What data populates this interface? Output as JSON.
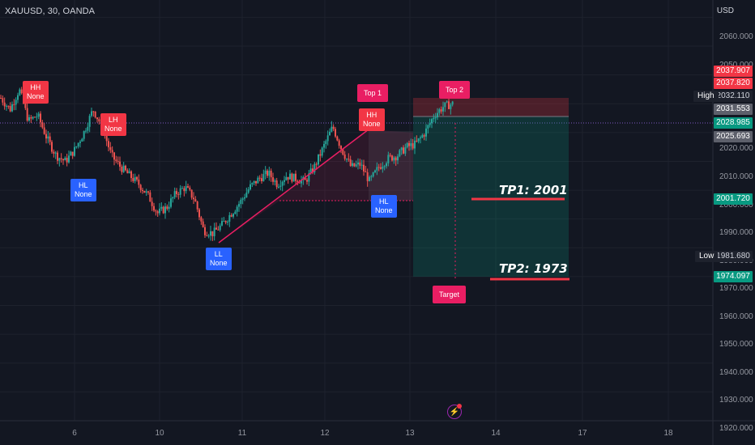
{
  "header": {
    "symbol": "XAUUSD, 30, OANDA",
    "currency": "USD"
  },
  "colors": {
    "background": "#131722",
    "up": "#26a69a",
    "down": "#ef5350",
    "accent_pink": "#e91e63",
    "label_red": "#f23645",
    "label_blue": "#2962ff"
  },
  "price_axis": {
    "ticks": [
      "2060.000",
      "2050.000",
      "2020.000",
      "2010.000",
      "2000.000",
      "1990.000",
      "1980.000",
      "1970.000",
      "1960.000",
      "1950.000",
      "1940.000",
      "1930.000",
      "1920.000"
    ],
    "tags": {
      "p2037_907": "2037.907",
      "p2037_820": "2037.820",
      "p2032_110": "2032.110",
      "p2031_553": "2031.553",
      "p2028_985": "2028.985",
      "p2025_693": "2025.693",
      "p2001_720": "2001.720",
      "p1981_680": "1981.680",
      "p1974_097": "1974.097"
    },
    "high_label": "High",
    "low_label": "Low"
  },
  "time_axis": {
    "ticks": [
      "6",
      "10",
      "11",
      "12",
      "13",
      "14",
      "17",
      "18"
    ]
  },
  "annotations": {
    "swing_hh_left": "HH\nNone",
    "swing_hl_1": "HL\nNone",
    "swing_lh": "LH\nNone",
    "swing_ll": "LL\nNone",
    "swing_hh_right": "HH\nNone",
    "swing_hl_2": "HL\nNone",
    "top1": "Top 1",
    "top2": "Top 2",
    "target": "Target",
    "tp1": "TP1: 2001",
    "tp2": "TP2: 1973"
  },
  "chart_data": {
    "type": "candlestick",
    "symbol": "XAUUSD",
    "timeframe": "30",
    "ylim": [
      1920,
      2066
    ],
    "close_path": [
      2032,
      2028,
      2035,
      2024,
      2026,
      2018,
      2012,
      2010,
      2014,
      2020,
      2028,
      2022,
      2012,
      2008,
      2005,
      2002,
      1998,
      1992,
      1994,
      1999,
      2001,
      1997,
      1986,
      1985,
      1988,
      1992,
      1996,
      2001,
      2004,
      2006,
      2002,
      2005,
      2004,
      2003,
      2008,
      2015,
      2022,
      2014,
      2008,
      2009,
      2003,
      2008,
      2011,
      2012,
      2015,
      2016,
      2020,
      2026,
      2029,
      2030
    ]
  }
}
